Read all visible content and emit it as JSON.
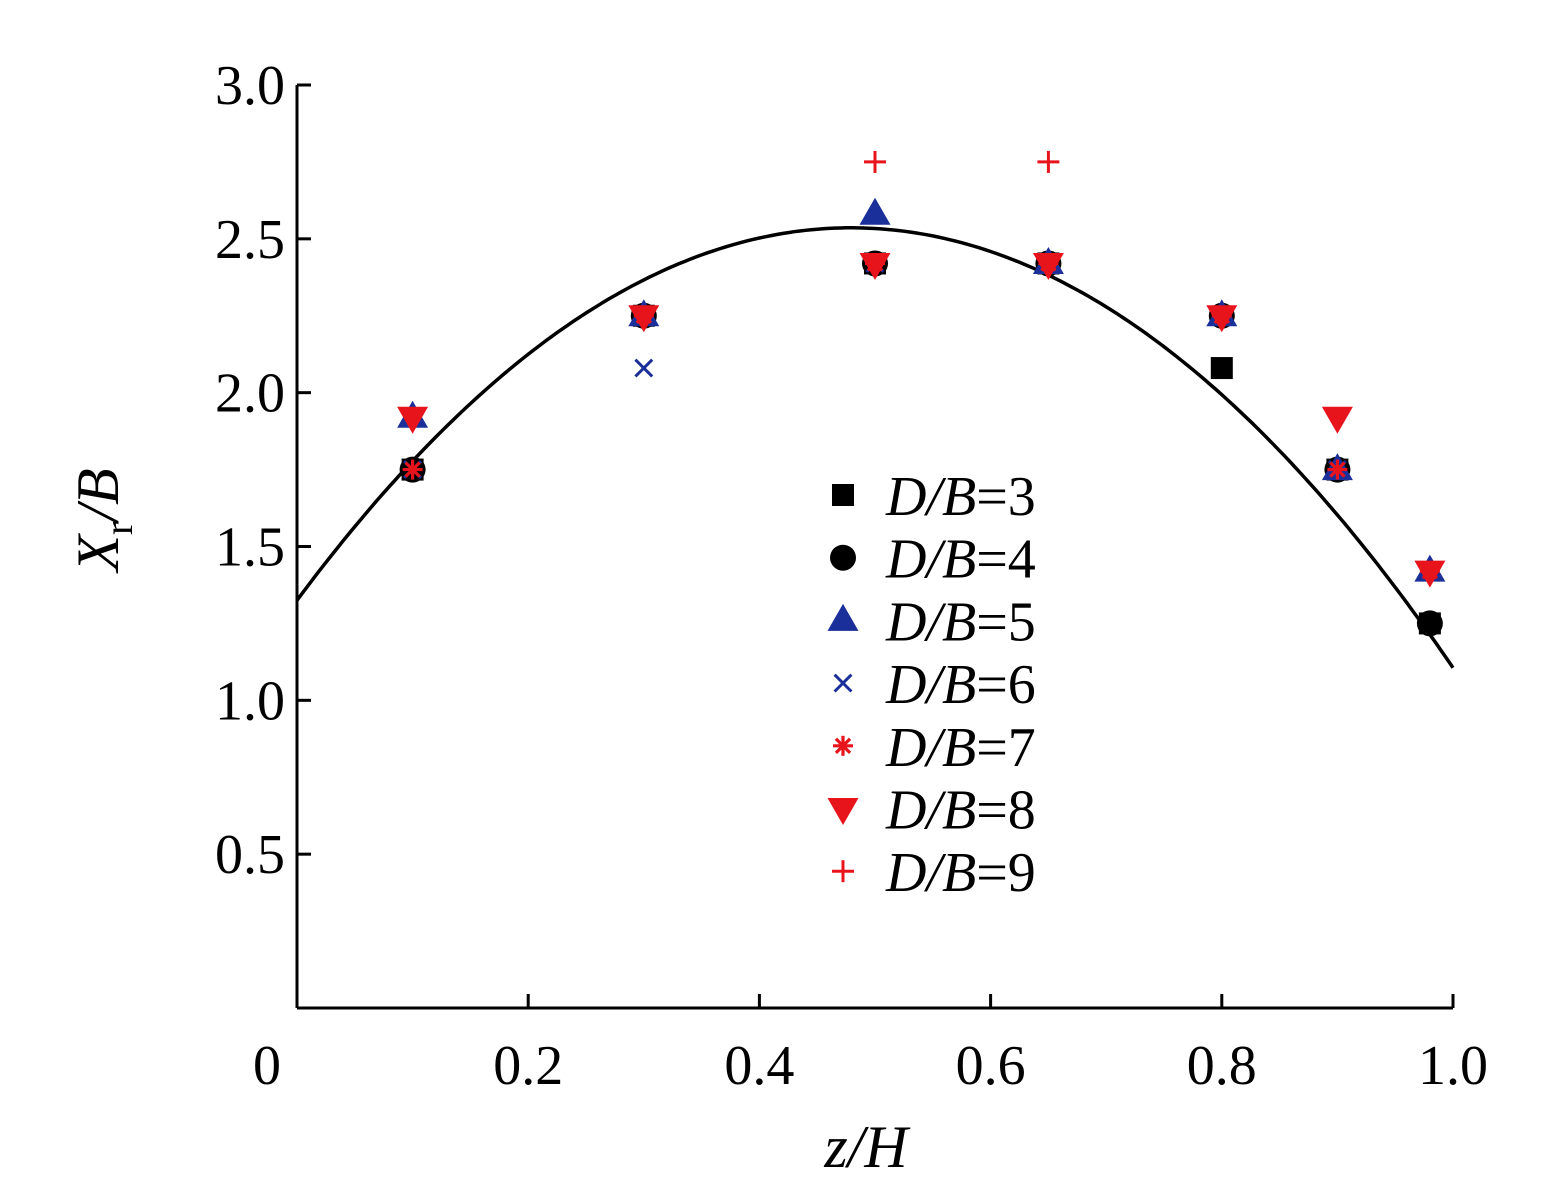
{
  "chart_data": {
    "type": "scatter",
    "xlabel": {
      "main": "z",
      "sep": "/",
      "italic2": "H"
    },
    "ylabel": {
      "main": "X",
      "sub": "r",
      "sep": "/",
      "italic2": "B"
    },
    "xlim": [
      0,
      1.0
    ],
    "ylim": [
      0,
      3.0
    ],
    "x_ticks": [
      {
        "value": 0,
        "label": "0"
      },
      {
        "value": 0.2,
        "label": "0.2"
      },
      {
        "value": 0.4,
        "label": "0.4"
      },
      {
        "value": 0.6,
        "label": "0.6"
      },
      {
        "value": 0.8,
        "label": "0.8"
      },
      {
        "value": 1.0,
        "label": "1.0"
      }
    ],
    "y_ticks": [
      {
        "value": 0.5,
        "label": "0.5"
      },
      {
        "value": 1.0,
        "label": "1.0"
      },
      {
        "value": 1.5,
        "label": "1.5"
      },
      {
        "value": 2.0,
        "label": "2.0"
      },
      {
        "value": 2.5,
        "label": "2.5"
      },
      {
        "value": 3.0,
        "label": "3.0"
      }
    ],
    "grid": false,
    "legend_position": "center-right",
    "series": [
      {
        "name_italic": "D/B",
        "name_rest": "=3",
        "marker": "square",
        "color": "#000000",
        "x": [
          0.1,
          0.3,
          0.5,
          0.65,
          0.8,
          0.9,
          0.98
        ],
        "y": [
          1.75,
          2.25,
          2.42,
          2.42,
          2.08,
          1.75,
          1.25
        ]
      },
      {
        "name_italic": "D/B",
        "name_rest": "=4",
        "marker": "circle",
        "color": "#000000",
        "x": [
          0.1,
          0.3,
          0.5,
          0.65,
          0.8,
          0.9,
          0.98
        ],
        "y": [
          1.75,
          2.25,
          2.42,
          2.42,
          2.25,
          1.75,
          1.25
        ]
      },
      {
        "name_italic": "D/B",
        "name_rest": "=5",
        "marker": "triangle-up",
        "color": "#1a2f9a",
        "x": [
          0.1,
          0.3,
          0.5,
          0.65,
          0.8,
          0.9,
          0.98
        ],
        "y": [
          1.92,
          2.25,
          2.58,
          2.42,
          2.25,
          1.75,
          1.42
        ]
      },
      {
        "name_italic": "D/B",
        "name_rest": "=6",
        "marker": "x",
        "color": "#1a2f9a",
        "x": [
          0.1,
          0.3,
          0.5,
          0.65,
          0.8,
          0.9,
          0.98
        ],
        "y": [
          1.75,
          2.08,
          2.42,
          2.42,
          2.25,
          1.75,
          1.42
        ]
      },
      {
        "name_italic": "D/B",
        "name_rest": "=7",
        "marker": "asterisk",
        "color": "#e8141c",
        "x": [
          0.1,
          0.3,
          0.5,
          0.65,
          0.8,
          0.9,
          0.98
        ],
        "y": [
          1.75,
          2.25,
          2.42,
          2.42,
          2.25,
          1.75,
          1.42
        ]
      },
      {
        "name_italic": "D/B",
        "name_rest": "=8",
        "marker": "triangle-down",
        "color": "#e8141c",
        "x": [
          0.1,
          0.3,
          0.5,
          0.65,
          0.8,
          0.9,
          0.98
        ],
        "y": [
          1.92,
          2.25,
          2.42,
          2.42,
          2.25,
          1.92,
          1.42
        ]
      },
      {
        "name_italic": "D/B",
        "name_rest": "=9",
        "marker": "plus",
        "color": "#e8141c",
        "x": [
          0.5,
          0.65
        ],
        "y": [
          2.75,
          2.75
        ]
      }
    ],
    "fit_curve": {
      "type": "quadratic",
      "color": "#000000",
      "x": [
        0,
        0.1,
        0.2,
        0.3,
        0.4,
        0.5,
        0.6,
        0.7,
        0.8,
        0.9,
        1.0
      ],
      "y": [
        1.32,
        1.78,
        2.13,
        2.37,
        2.5,
        2.53,
        2.46,
        2.28,
        1.99,
        1.6,
        1.11
      ]
    }
  }
}
